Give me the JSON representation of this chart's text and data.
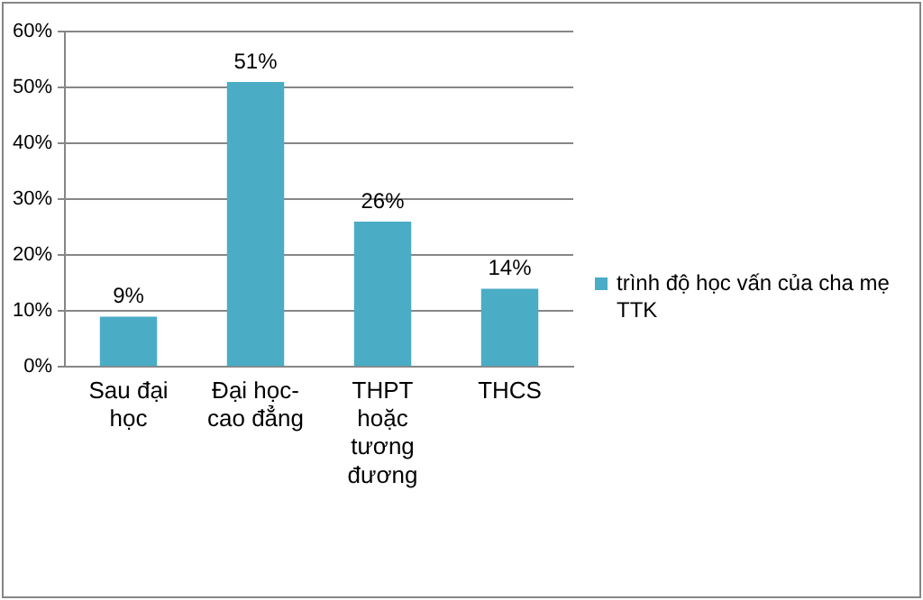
{
  "chart_data": {
    "type": "bar",
    "categories": [
      "Sau đại học",
      "Đại học-cao đẳng",
      "THPT hoặc tương đương",
      "THCS"
    ],
    "series": [
      {
        "name": "trình độ học vấn của cha mẹ TTK",
        "color": "#4bacc6",
        "values": [
          9,
          51,
          26,
          14
        ],
        "value_labels": [
          "9%",
          "51%",
          "26%",
          "14%"
        ]
      }
    ],
    "ylim": [
      0,
      60
    ],
    "yticks": [
      {
        "value": 0,
        "label": "0%"
      },
      {
        "value": 10,
        "label": "10%"
      },
      {
        "value": 20,
        "label": "20%"
      },
      {
        "value": 30,
        "label": "30%"
      },
      {
        "value": 40,
        "label": "40%"
      },
      {
        "value": 50,
        "label": "50%"
      },
      {
        "value": 60,
        "label": "60%"
      }
    ],
    "grid": "y",
    "legend": "right"
  }
}
